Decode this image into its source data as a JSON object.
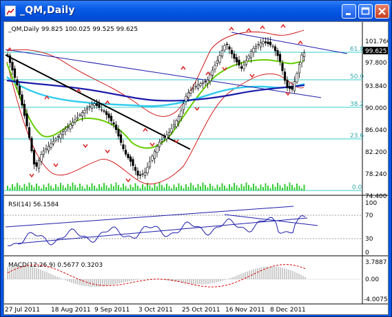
{
  "window": {
    "title": "_QM,Daily",
    "buttons": {
      "minimize": "minimize",
      "maximize": "maximize",
      "close": "close"
    }
  },
  "main_pane": {
    "header": "_QM,Daily  99.825 100.025 99.525 99.625",
    "price_label": "99.625",
    "fib_labels": {
      "f618": "61.8",
      "f50": "50.0",
      "f382": "38.2",
      "f236": "23.6",
      "f0": "0.0"
    },
    "price_axis": [
      "101.760",
      "97.800",
      "93.840",
      "90.000",
      "86.040",
      "82.200",
      "78.240",
      "74.400"
    ]
  },
  "rsi_pane": {
    "header": "RSI(14) 56.1584",
    "axis": [
      "100",
      "70",
      "30",
      "0"
    ]
  },
  "macd_pane": {
    "header": "MACD(12,26,9) 0.5677 0.3203",
    "axis": [
      "3.7887",
      "0.00",
      "-4.0075"
    ]
  },
  "x_axis": [
    "27 Jul 2011",
    "18 Aug 2011",
    "9 Sep 2011",
    "3 Oct 2011",
    "25 Oct 2011",
    "16 Nov 2011",
    "8 Dec 2011"
  ],
  "colors": {
    "bollinger": "#CC0000",
    "ma_fast": "#66CC00",
    "ma_mid": "#33CCEE",
    "ma_slow": "#1A1AAA",
    "fib": "#33CCCC",
    "volume": "#33CC33",
    "fractal": "#DD2222",
    "macd_signal": "#DD0000",
    "macd_hist": "#999999"
  }
}
